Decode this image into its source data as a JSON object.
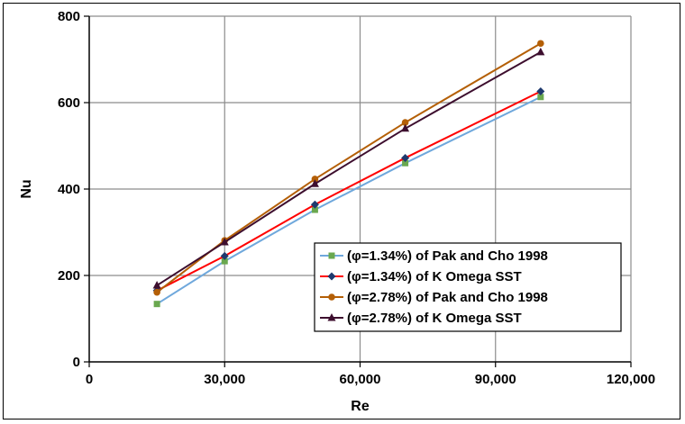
{
  "chart_data": {
    "type": "line",
    "title": "",
    "xlabel": "Re",
    "ylabel": "Nu",
    "xlim": [
      0,
      120000
    ],
    "ylim": [
      0,
      800
    ],
    "xticks": [
      0,
      30000,
      60000,
      90000,
      120000
    ],
    "xtick_labels": [
      "0",
      "30,000",
      "60,000",
      "90,000",
      "120,000"
    ],
    "yticks": [
      0,
      200,
      400,
      600,
      800
    ],
    "ytick_labels": [
      "0",
      "200",
      "400",
      "600",
      "800"
    ],
    "grid": "on",
    "legend_position": "lower-right",
    "x": [
      15000,
      30000,
      50000,
      70000,
      100000
    ],
    "series": [
      {
        "name": "(φ=1.34%) of Pak and Cho 1998",
        "values": [
          134,
          233,
          352,
          460,
          613
        ],
        "line_color": "#6fa8dc",
        "marker": "square",
        "marker_color": "#6aa84f"
      },
      {
        "name": "(φ=1.34%) of K Omega SST",
        "values": [
          165,
          245,
          364,
          472,
          626
        ],
        "line_color": "#ff0000",
        "marker": "diamond",
        "marker_color": "#1f3a6e"
      },
      {
        "name": "(φ=2.78%) of Pak and Cho 1998",
        "values": [
          161,
          281,
          423,
          554,
          737
        ],
        "line_color": "#b45f06",
        "marker": "circle",
        "marker_color": "#b45f06"
      },
      {
        "name": "(φ=2.78%) of K Omega SST",
        "values": [
          177,
          277,
          412,
          540,
          717
        ],
        "line_color": "#3d0e2e",
        "marker": "triangle",
        "marker_color": "#3d0e2e"
      }
    ]
  }
}
